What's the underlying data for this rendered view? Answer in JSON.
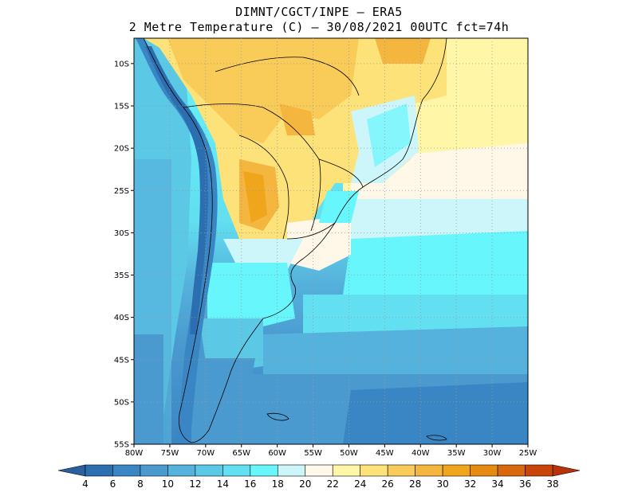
{
  "header": {
    "line1": "DIMNT/CGCT/INPE –  ERA5",
    "line2": "2 Metre Temperature (C) –  30/08/2021 00UTC fct=74h"
  },
  "map": {
    "lon_ticks": [
      "80W",
      "75W",
      "70W",
      "65W",
      "60W",
      "55W",
      "50W",
      "45W",
      "40W",
      "35W",
      "30W",
      "25W"
    ],
    "lat_ticks": [
      "10S",
      "15S",
      "20S",
      "25S",
      "30S",
      "35S",
      "40S",
      "45S",
      "50S",
      "55S"
    ],
    "lon_range": [
      -80,
      -25
    ],
    "lat_range": [
      -55,
      -7
    ]
  },
  "colorbar": {
    "labels": [
      "4",
      "6",
      "8",
      "10",
      "12",
      "14",
      "16",
      "18",
      "20",
      "22",
      "24",
      "26",
      "28",
      "30",
      "32",
      "34",
      "36",
      "38"
    ],
    "colors": [
      "#2b6fb0",
      "#3a86c4",
      "#4a9ad0",
      "#55b2dc",
      "#5bc8e6",
      "#62dff0",
      "#66f6fb",
      "#ccf6fa",
      "#fff8e8",
      "#fff6a8",
      "#fde27a",
      "#f9cc5a",
      "#f4b63e",
      "#f0a61c",
      "#e68a12",
      "#d8680c",
      "#c84408"
    ],
    "end_low": "#2a5fa0",
    "end_high": "#b8320a"
  }
}
